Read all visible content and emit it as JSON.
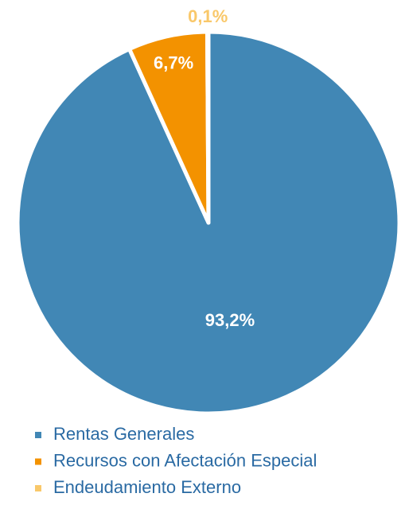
{
  "chart_data": {
    "type": "pie",
    "categories": [
      "Rentas Generales",
      "Recursos con Afectación Especial",
      "Endeudamiento Externo"
    ],
    "values": [
      93.2,
      6.7,
      0.1
    ],
    "value_labels": [
      "93,2%",
      "6,7%",
      "0,1%"
    ],
    "colors": [
      "#4187b5",
      "#f39200",
      "#f9c86a"
    ],
    "legend": "bottom"
  }
}
